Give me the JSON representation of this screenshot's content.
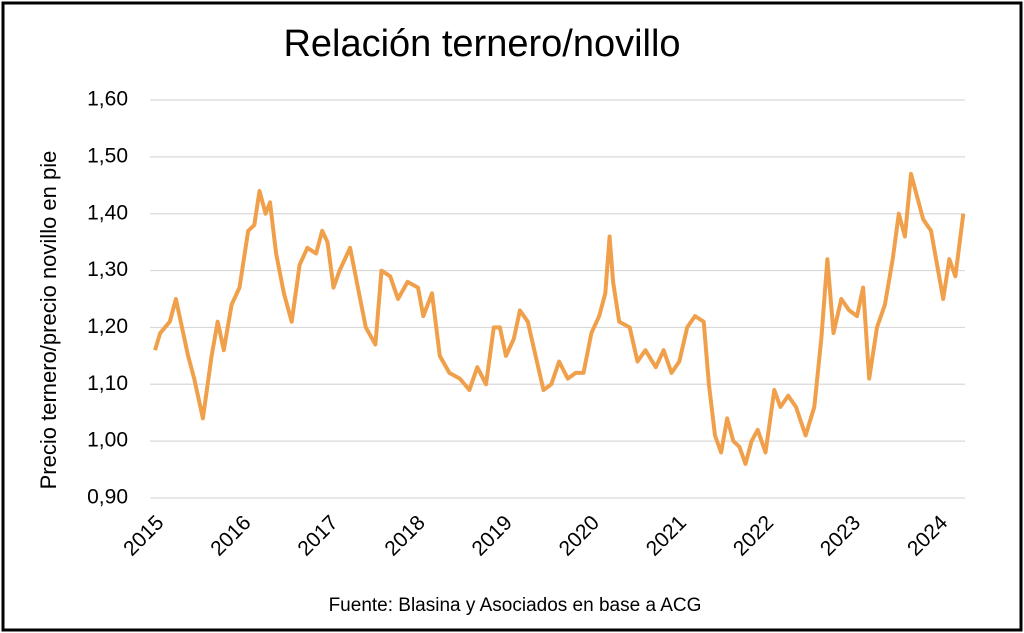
{
  "chart_data": {
    "type": "line",
    "title": "Relación ternero/novillo",
    "y_label": "Precio ternero/precio novillo en pie",
    "source": "Fuente: Blasina y Asociados en base a ACG",
    "color": "#f0a04b",
    "grid": true,
    "xlim": [
      2015,
      2024.3
    ],
    "xticks": [
      2015,
      2016,
      2017,
      2018,
      2019,
      2020,
      2021,
      2022,
      2023,
      2024
    ],
    "ylim": [
      0.9,
      1.6
    ],
    "yticks": [
      {
        "value": 0.9,
        "label": "0,90"
      },
      {
        "value": 1.0,
        "label": "1,00"
      },
      {
        "value": 1.1,
        "label": "1,10"
      },
      {
        "value": 1.2,
        "label": "1,20"
      },
      {
        "value": 1.3,
        "label": "1,30"
      },
      {
        "value": 1.4,
        "label": "1,40"
      },
      {
        "value": 1.5,
        "label": "1,50"
      },
      {
        "value": 1.6,
        "label": "1,60"
      }
    ],
    "x": [
      2015.0,
      2015.06,
      2015.17,
      2015.24,
      2015.31,
      2015.38,
      2015.45,
      2015.55,
      2015.65,
      2015.72,
      2015.79,
      2015.88,
      2015.97,
      2016.07,
      2016.14,
      2016.2,
      2016.27,
      2016.32,
      2016.39,
      2016.48,
      2016.57,
      2016.66,
      2016.75,
      2016.85,
      2016.92,
      2016.98,
      2017.05,
      2017.12,
      2017.24,
      2017.33,
      2017.42,
      2017.53,
      2017.6,
      2017.7,
      2017.79,
      2017.9,
      2018.02,
      2018.08,
      2018.18,
      2018.27,
      2018.38,
      2018.5,
      2018.61,
      2018.7,
      2018.8,
      2018.89,
      2018.96,
      2019.03,
      2019.12,
      2019.19,
      2019.28,
      2019.37,
      2019.46,
      2019.55,
      2019.64,
      2019.74,
      2019.83,
      2019.92,
      2020.01,
      2020.1,
      2020.17,
      2020.22,
      2020.26,
      2020.33,
      2020.45,
      2020.54,
      2020.63,
      2020.75,
      2020.84,
      2020.93,
      2021.02,
      2021.11,
      2021.2,
      2021.3,
      2021.36,
      2021.43,
      2021.5,
      2021.57,
      2021.64,
      2021.71,
      2021.78,
      2021.85,
      2021.92,
      2022.01,
      2022.11,
      2022.18,
      2022.27,
      2022.36,
      2022.47,
      2022.57,
      2022.65,
      2022.72,
      2022.79,
      2022.88,
      2022.97,
      2023.06,
      2023.13,
      2023.2,
      2023.29,
      2023.38,
      2023.47,
      2023.54,
      2023.61,
      2023.68,
      2023.75,
      2023.82,
      2023.91,
      2023.98,
      2024.05,
      2024.12,
      2024.19,
      2024.28
    ],
    "values": [
      1.16,
      1.19,
      1.21,
      1.25,
      1.2,
      1.15,
      1.11,
      1.04,
      1.15,
      1.21,
      1.16,
      1.24,
      1.27,
      1.37,
      1.38,
      1.44,
      1.4,
      1.42,
      1.33,
      1.26,
      1.21,
      1.31,
      1.34,
      1.33,
      1.37,
      1.35,
      1.27,
      1.3,
      1.34,
      1.27,
      1.2,
      1.17,
      1.3,
      1.29,
      1.25,
      1.28,
      1.27,
      1.22,
      1.26,
      1.15,
      1.12,
      1.11,
      1.09,
      1.13,
      1.1,
      1.2,
      1.2,
      1.15,
      1.18,
      1.23,
      1.21,
      1.15,
      1.09,
      1.1,
      1.14,
      1.11,
      1.12,
      1.12,
      1.19,
      1.22,
      1.26,
      1.36,
      1.28,
      1.21,
      1.2,
      1.14,
      1.16,
      1.13,
      1.16,
      1.12,
      1.14,
      1.2,
      1.22,
      1.21,
      1.1,
      1.01,
      0.98,
      1.04,
      1.0,
      0.99,
      0.96,
      1.0,
      1.02,
      0.98,
      1.09,
      1.06,
      1.08,
      1.06,
      1.01,
      1.06,
      1.18,
      1.32,
      1.19,
      1.25,
      1.23,
      1.22,
      1.27,
      1.11,
      1.2,
      1.24,
      1.32,
      1.4,
      1.36,
      1.47,
      1.43,
      1.39,
      1.37,
      1.31,
      1.25,
      1.32,
      1.29,
      1.4
    ]
  }
}
